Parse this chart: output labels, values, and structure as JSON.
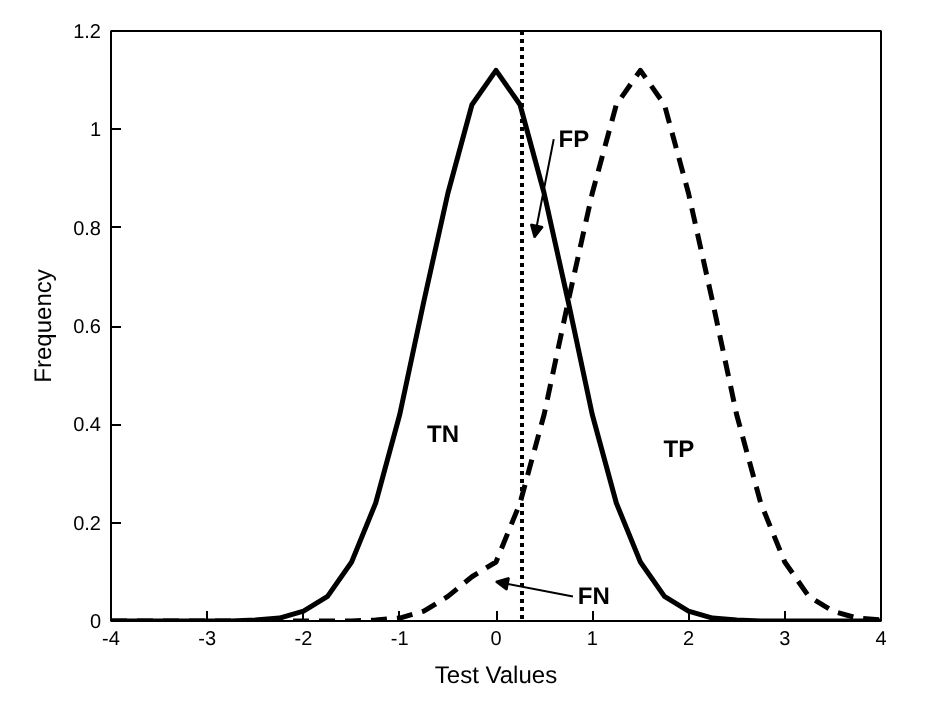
{
  "chart_data": {
    "type": "line",
    "xlabel": "Test Values",
    "ylabel": "Frequency",
    "x": [
      -4,
      -3.5,
      -3,
      -2.75,
      -2.5,
      -2.25,
      -2,
      -1.75,
      -1.5,
      -1.25,
      -1,
      -0.75,
      -0.5,
      -0.25,
      0,
      0.25,
      0.5,
      0.75,
      1,
      1.25,
      1.5,
      1.75,
      2,
      2.25,
      2.5,
      2.75,
      3,
      3.25,
      3.5,
      3.75,
      4
    ],
    "series": [
      {
        "color": "#000000",
        "line_style": "solid",
        "values": [
          0,
          0,
          0,
          0,
          0.002,
          0.006,
          0.02,
          0.05,
          0.12,
          0.24,
          0.42,
          0.65,
          0.87,
          1.05,
          1.12,
          1.05,
          0.87,
          0.65,
          0.42,
          0.24,
          0.12,
          0.05,
          0.02,
          0.006,
          0.002,
          0,
          0,
          0,
          0,
          0,
          0
        ]
      },
      {
        "color": "#000000",
        "line_style": "dashed",
        "values": [
          0,
          0,
          0,
          0,
          0,
          0,
          0,
          0,
          0,
          0.002,
          0.006,
          0.02,
          0.05,
          0.09,
          0.12,
          0.24,
          0.42,
          0.65,
          0.87,
          1.05,
          1.12,
          1.05,
          0.87,
          0.65,
          0.42,
          0.24,
          0.12,
          0.05,
          0.02,
          0.006,
          0.002
        ]
      }
    ],
    "xlim": [
      -4,
      4
    ],
    "xticks": [
      -4,
      -3,
      -2,
      -1,
      0,
      1,
      2,
      3,
      4
    ],
    "ylim": [
      0,
      1.2
    ],
    "yticks": [
      0,
      0.2,
      0.4,
      0.6,
      0.8,
      1,
      1.2
    ],
    "ref_lines": [
      {
        "axis": "x",
        "value": 0.27,
        "color": "#000000",
        "line_style": "dotted"
      }
    ],
    "annotations": [
      "TN",
      "TP",
      "FP",
      "FN"
    ],
    "grid": false,
    "marker": "none"
  }
}
